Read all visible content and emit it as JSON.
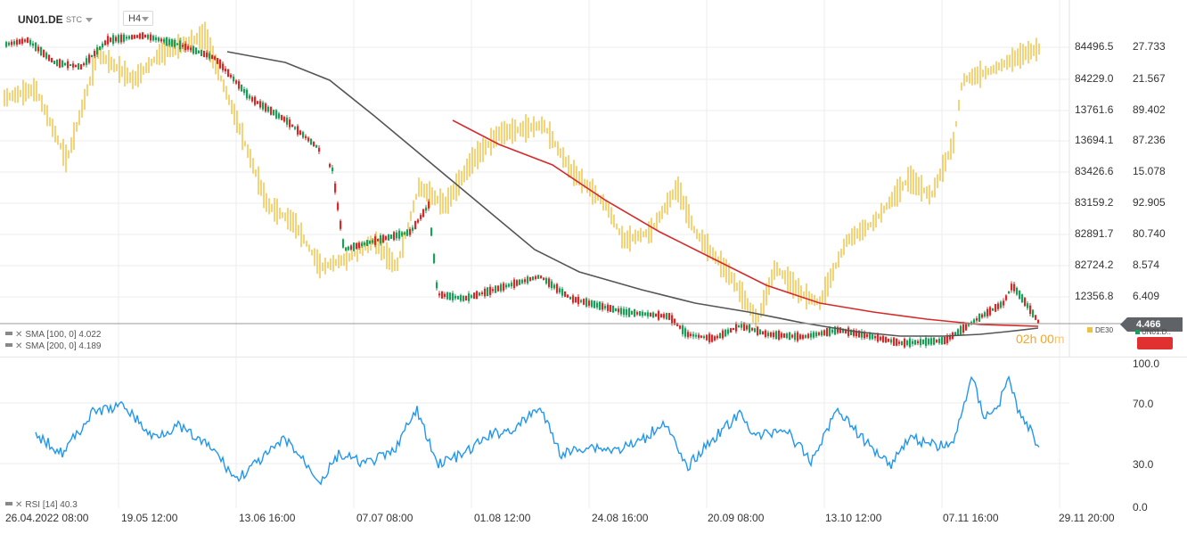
{
  "header": {
    "symbol": "UN01.DE",
    "feed": "STC",
    "timeframe": "H4"
  },
  "price_axis_left": [
    "84496.5",
    "84229.0",
    "13761.6",
    "13694.1",
    "83426.6",
    "83159.2",
    "82891.7",
    "82724.2",
    "12356.8"
  ],
  "price_axis_right": [
    "27.733",
    "21.567",
    "89.402",
    "87.236",
    "15.078",
    "92.905",
    "80.740",
    "8.574",
    "6.409"
  ],
  "last_price": "4.466",
  "overlay_labels": {
    "compare_symbol": "DE30",
    "badge_symbol": "UN01.D..",
    "countdown_h": "02h 00",
    "countdown_m": "m"
  },
  "indicators": [
    {
      "label": "SMA [100, 0] 4.022",
      "color": "#d62a2a"
    },
    {
      "label": "SMA [200, 0] 4.189",
      "color": "#555555"
    }
  ],
  "rsi": {
    "label": "RSI [14] 40.3",
    "axis": [
      "100.0",
      "70.0",
      "30.0",
      "0.0"
    ]
  },
  "time_axis": [
    "26.04.2022 08:00",
    "19.05 12:00",
    "13.06 16:00",
    "07.07 08:00",
    "01.08 12:00",
    "24.08 16:00",
    "20.09 08:00",
    "13.10 12:00",
    "07.11 16:00",
    "29.11 20:00"
  ],
  "colors": {
    "up_candle": "#1a9e5a",
    "down_candle": "#d62a2a",
    "compare_bars": "#f0c040",
    "sma100": "#d62a2a",
    "sma200": "#555555",
    "rsi": "#2196f3",
    "grid": "#ececec"
  }
}
